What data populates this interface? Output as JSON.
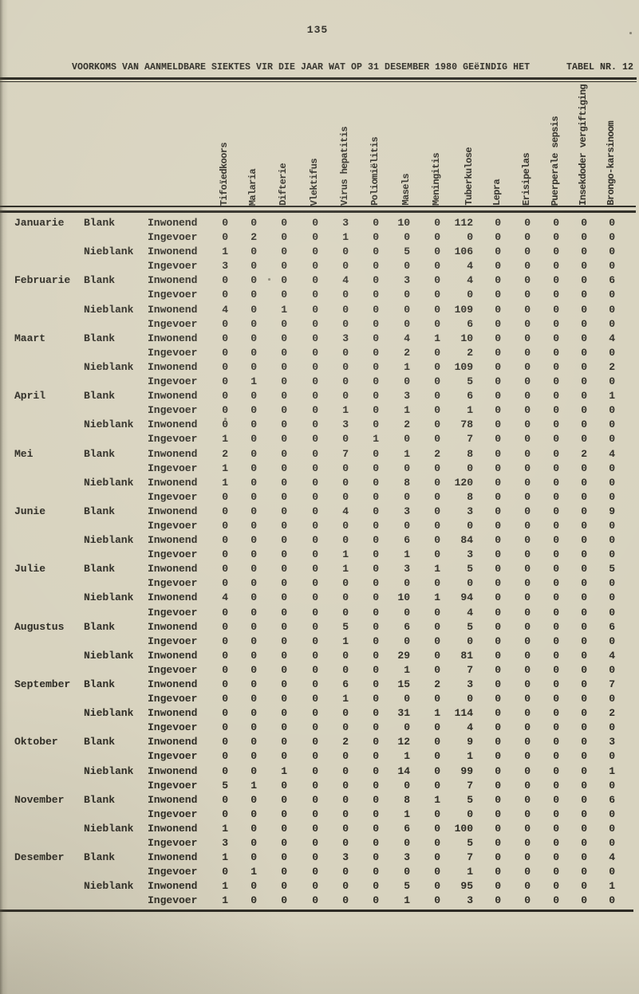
{
  "page_number": "135",
  "title": "VOORKOMS VAN AANMELDBARE SIEKTES VIR DIE JAAR WAT OP 31 DESEMBER 1980 GEëINDIG HET",
  "table_label": "TABEL NR. 12",
  "colors": {
    "paper": "#d8d3bf",
    "ink": "#2d2b24"
  },
  "table": {
    "columns": [
      "Tifoïedkoors",
      "Malaria",
      "Difterie",
      "Vlektifus",
      "Virus hepatitis",
      "Poliomiëlitis",
      "Masels",
      "Meningitis",
      "Tuberkulose",
      "Lepra",
      "Erisipelas",
      "Puerperale sepsis",
      "Insekdoder vergiftiging",
      "Brongo-karsinoom"
    ],
    "rows": [
      {
        "month": "Januarie",
        "race": "Blank",
        "status": "Inwonend",
        "values": [
          0,
          0,
          0,
          0,
          3,
          0,
          10,
          0,
          112,
          0,
          0,
          0,
          0,
          0
        ]
      },
      {
        "month": "",
        "race": "",
        "status": "Ingevoer",
        "values": [
          0,
          2,
          0,
          0,
          1,
          0,
          0,
          0,
          0,
          0,
          0,
          0,
          0,
          0
        ]
      },
      {
        "month": "",
        "race": "Nieblank",
        "status": "Inwonend",
        "values": [
          1,
          0,
          0,
          0,
          0,
          0,
          5,
          0,
          106,
          0,
          0,
          0,
          0,
          0
        ]
      },
      {
        "month": "",
        "race": "",
        "status": "Ingevoer",
        "values": [
          3,
          0,
          0,
          0,
          0,
          0,
          0,
          0,
          4,
          0,
          0,
          0,
          0,
          0
        ]
      },
      {
        "month": "Februarie",
        "race": "Blank",
        "status": "Inwonend",
        "values": [
          0,
          0,
          0,
          0,
          4,
          0,
          3,
          0,
          4,
          0,
          0,
          0,
          0,
          6
        ]
      },
      {
        "month": "",
        "race": "",
        "status": "Ingevoer",
        "values": [
          0,
          0,
          0,
          0,
          0,
          0,
          0,
          0,
          0,
          0,
          0,
          0,
          0,
          0
        ]
      },
      {
        "month": "",
        "race": "Nieblank",
        "status": "Inwonend",
        "values": [
          4,
          0,
          1,
          0,
          0,
          0,
          0,
          0,
          109,
          0,
          0,
          0,
          0,
          0
        ]
      },
      {
        "month": "",
        "race": "",
        "status": "Ingevoer",
        "values": [
          0,
          0,
          0,
          0,
          0,
          0,
          0,
          0,
          6,
          0,
          0,
          0,
          0,
          0
        ]
      },
      {
        "month": "Maart",
        "race": "Blank",
        "status": "Inwonend",
        "values": [
          0,
          0,
          0,
          0,
          3,
          0,
          4,
          1,
          10,
          0,
          0,
          0,
          0,
          4
        ]
      },
      {
        "month": "",
        "race": "",
        "status": "Ingevoer",
        "values": [
          0,
          0,
          0,
          0,
          0,
          0,
          2,
          0,
          2,
          0,
          0,
          0,
          0,
          0
        ]
      },
      {
        "month": "",
        "race": "Nieblank",
        "status": "Inwonend",
        "values": [
          0,
          0,
          0,
          0,
          0,
          0,
          1,
          0,
          109,
          0,
          0,
          0,
          0,
          2
        ]
      },
      {
        "month": "",
        "race": "",
        "status": "Ingevoer",
        "values": [
          0,
          1,
          0,
          0,
          0,
          0,
          0,
          0,
          5,
          0,
          0,
          0,
          0,
          0
        ]
      },
      {
        "month": "April",
        "race": "Blank",
        "status": "Inwonend",
        "values": [
          0,
          0,
          0,
          0,
          0,
          0,
          3,
          0,
          6,
          0,
          0,
          0,
          0,
          1
        ]
      },
      {
        "month": "",
        "race": "",
        "status": "Ingevoer",
        "values": [
          0,
          0,
          0,
          0,
          1,
          0,
          1,
          0,
          1,
          0,
          0,
          0,
          0,
          0
        ]
      },
      {
        "month": "",
        "race": "Nieblank",
        "status": "Inwonend",
        "values": [
          0,
          0,
          0,
          0,
          3,
          0,
          2,
          0,
          78,
          0,
          0,
          0,
          0,
          0
        ]
      },
      {
        "month": "",
        "race": "",
        "status": "Ingevoer",
        "values": [
          1,
          0,
          0,
          0,
          0,
          1,
          0,
          0,
          7,
          0,
          0,
          0,
          0,
          0
        ]
      },
      {
        "month": "Mei",
        "race": "Blank",
        "status": "Inwonend",
        "values": [
          2,
          0,
          0,
          0,
          7,
          0,
          1,
          2,
          8,
          0,
          0,
          0,
          2,
          4
        ]
      },
      {
        "month": "",
        "race": "",
        "status": "Ingevoer",
        "values": [
          1,
          0,
          0,
          0,
          0,
          0,
          0,
          0,
          0,
          0,
          0,
          0,
          0,
          0
        ]
      },
      {
        "month": "",
        "race": "Nieblank",
        "status": "Inwonend",
        "values": [
          1,
          0,
          0,
          0,
          0,
          0,
          8,
          0,
          120,
          0,
          0,
          0,
          0,
          0
        ]
      },
      {
        "month": "",
        "race": "",
        "status": "Ingevoer",
        "values": [
          0,
          0,
          0,
          0,
          0,
          0,
          0,
          0,
          8,
          0,
          0,
          0,
          0,
          0
        ]
      },
      {
        "month": "Junie",
        "race": "Blank",
        "status": "Inwonend",
        "values": [
          0,
          0,
          0,
          0,
          4,
          0,
          3,
          0,
          3,
          0,
          0,
          0,
          0,
          9
        ]
      },
      {
        "month": "",
        "race": "",
        "status": "Ingevoer",
        "values": [
          0,
          0,
          0,
          0,
          0,
          0,
          0,
          0,
          0,
          0,
          0,
          0,
          0,
          0
        ]
      },
      {
        "month": "",
        "race": "Nieblank",
        "status": "Inwonend",
        "values": [
          0,
          0,
          0,
          0,
          0,
          0,
          6,
          0,
          84,
          0,
          0,
          0,
          0,
          0
        ]
      },
      {
        "month": "",
        "race": "",
        "status": "Ingevoer",
        "values": [
          0,
          0,
          0,
          0,
          1,
          0,
          1,
          0,
          3,
          0,
          0,
          0,
          0,
          0
        ]
      },
      {
        "month": "Julie",
        "race": "Blank",
        "status": "Inwonend",
        "values": [
          0,
          0,
          0,
          0,
          1,
          0,
          3,
          1,
          5,
          0,
          0,
          0,
          0,
          5
        ]
      },
      {
        "month": "",
        "race": "",
        "status": "Ingevoer",
        "values": [
          0,
          0,
          0,
          0,
          0,
          0,
          0,
          0,
          0,
          0,
          0,
          0,
          0,
          0
        ]
      },
      {
        "month": "",
        "race": "Nieblank",
        "status": "Inwonend",
        "values": [
          4,
          0,
          0,
          0,
          0,
          0,
          10,
          1,
          94,
          0,
          0,
          0,
          0,
          0
        ]
      },
      {
        "month": "",
        "race": "",
        "status": "Ingevoer",
        "values": [
          0,
          0,
          0,
          0,
          0,
          0,
          0,
          0,
          4,
          0,
          0,
          0,
          0,
          0
        ]
      },
      {
        "month": "Augustus",
        "race": "Blank",
        "status": "Inwonend",
        "values": [
          0,
          0,
          0,
          0,
          5,
          0,
          6,
          0,
          5,
          0,
          0,
          0,
          0,
          6
        ]
      },
      {
        "month": "",
        "race": "",
        "status": "Ingevoer",
        "values": [
          0,
          0,
          0,
          0,
          1,
          0,
          0,
          0,
          0,
          0,
          0,
          0,
          0,
          0
        ]
      },
      {
        "month": "",
        "race": "Nieblank",
        "status": "Inwonend",
        "values": [
          0,
          0,
          0,
          0,
          0,
          0,
          29,
          0,
          81,
          0,
          0,
          0,
          0,
          4
        ]
      },
      {
        "month": "",
        "race": "",
        "status": "Ingevoer",
        "values": [
          0,
          0,
          0,
          0,
          0,
          0,
          1,
          0,
          7,
          0,
          0,
          0,
          0,
          0
        ]
      },
      {
        "month": "September",
        "race": "Blank",
        "status": "Inwonend",
        "values": [
          0,
          0,
          0,
          0,
          6,
          0,
          15,
          2,
          3,
          0,
          0,
          0,
          0,
          7
        ]
      },
      {
        "month": "",
        "race": "",
        "status": "Ingevoer",
        "values": [
          0,
          0,
          0,
          0,
          1,
          0,
          0,
          0,
          0,
          0,
          0,
          0,
          0,
          0
        ]
      },
      {
        "month": "",
        "race": "Nieblank",
        "status": "Inwonend",
        "values": [
          0,
          0,
          0,
          0,
          0,
          0,
          31,
          1,
          114,
          0,
          0,
          0,
          0,
          2
        ]
      },
      {
        "month": "",
        "race": "",
        "status": "Ingevoer",
        "values": [
          0,
          0,
          0,
          0,
          0,
          0,
          0,
          0,
          4,
          0,
          0,
          0,
          0,
          0
        ]
      },
      {
        "month": "Oktober",
        "race": "Blank",
        "status": "Inwonend",
        "values": [
          0,
          0,
          0,
          0,
          2,
          0,
          12,
          0,
          9,
          0,
          0,
          0,
          0,
          3
        ]
      },
      {
        "month": "",
        "race": "",
        "status": "Ingevoer",
        "values": [
          0,
          0,
          0,
          0,
          0,
          0,
          1,
          0,
          1,
          0,
          0,
          0,
          0,
          0
        ]
      },
      {
        "month": "",
        "race": "Nieblank",
        "status": "Inwonend",
        "values": [
          0,
          0,
          1,
          0,
          0,
          0,
          14,
          0,
          99,
          0,
          0,
          0,
          0,
          1
        ]
      },
      {
        "month": "",
        "race": "",
        "status": "Ingevoer",
        "values": [
          5,
          1,
          0,
          0,
          0,
          0,
          0,
          0,
          7,
          0,
          0,
          0,
          0,
          0
        ]
      },
      {
        "month": "November",
        "race": "Blank",
        "status": "Inwonend",
        "values": [
          0,
          0,
          0,
          0,
          0,
          0,
          8,
          1,
          5,
          0,
          0,
          0,
          0,
          6
        ]
      },
      {
        "month": "",
        "race": "",
        "status": "Ingevoer",
        "values": [
          0,
          0,
          0,
          0,
          0,
          0,
          1,
          0,
          0,
          0,
          0,
          0,
          0,
          0
        ]
      },
      {
        "month": "",
        "race": "Nieblank",
        "status": "Inwonend",
        "values": [
          1,
          0,
          0,
          0,
          0,
          0,
          6,
          0,
          100,
          0,
          0,
          0,
          0,
          0
        ]
      },
      {
        "month": "",
        "race": "",
        "status": "Ingevoer",
        "values": [
          3,
          0,
          0,
          0,
          0,
          0,
          0,
          0,
          5,
          0,
          0,
          0,
          0,
          0
        ]
      },
      {
        "month": "Desember",
        "race": "Blank",
        "status": "Inwonend",
        "values": [
          1,
          0,
          0,
          0,
          3,
          0,
          3,
          0,
          7,
          0,
          0,
          0,
          0,
          4
        ]
      },
      {
        "month": "",
        "race": "",
        "status": "Ingevoer",
        "values": [
          0,
          1,
          0,
          0,
          0,
          0,
          0,
          0,
          1,
          0,
          0,
          0,
          0,
          0
        ]
      },
      {
        "month": "",
        "race": "Nieblank",
        "status": "Inwonend",
        "values": [
          1,
          0,
          0,
          0,
          0,
          0,
          5,
          0,
          95,
          0,
          0,
          0,
          0,
          1
        ]
      },
      {
        "month": "",
        "race": "",
        "status": "Ingevoer",
        "values": [
          1,
          0,
          0,
          0,
          0,
          0,
          1,
          0,
          3,
          0,
          0,
          0,
          0,
          0
        ]
      }
    ]
  }
}
